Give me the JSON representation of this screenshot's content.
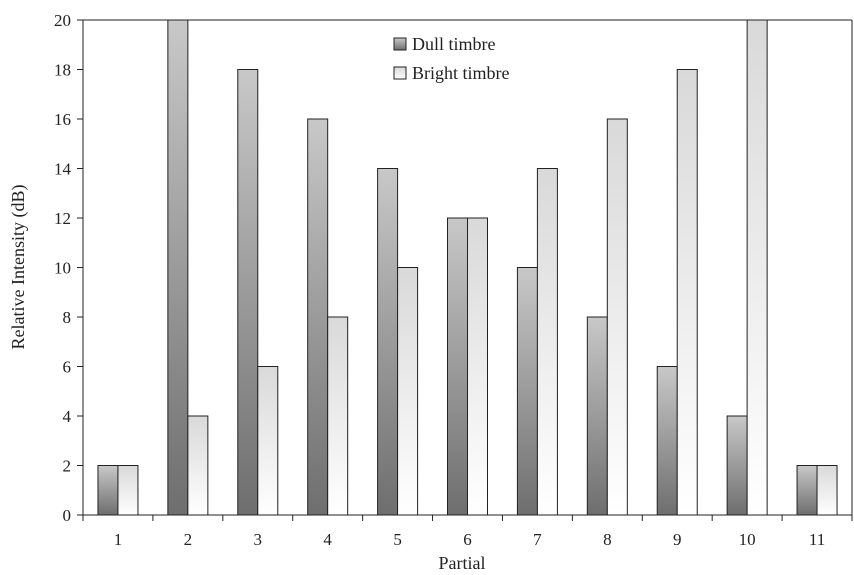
{
  "chart_data": {
    "type": "bar",
    "title": "",
    "xlabel": "Partial",
    "ylabel": "Relative Intensity (dB)",
    "categories": [
      "1",
      "2",
      "3",
      "4",
      "5",
      "6",
      "7",
      "8",
      "9",
      "10",
      "11"
    ],
    "series": [
      {
        "name": "Dull timbre",
        "values": [
          2,
          20,
          18,
          16,
          14,
          12,
          10,
          8,
          6,
          4,
          2
        ],
        "color_top": "#c8c8c8",
        "color_bottom": "#6e6e6e"
      },
      {
        "name": "Bright timbre",
        "values": [
          2,
          4,
          6,
          8,
          10,
          12,
          14,
          16,
          18,
          20,
          2
        ],
        "color_top": "#d9d9d9",
        "color_bottom": "#ffffff"
      }
    ],
    "ylim": [
      0,
      20
    ],
    "yticks": [
      0,
      2,
      4,
      6,
      8,
      10,
      12,
      14,
      16,
      18,
      20
    ],
    "grid": false,
    "legend_position": "top-center"
  }
}
